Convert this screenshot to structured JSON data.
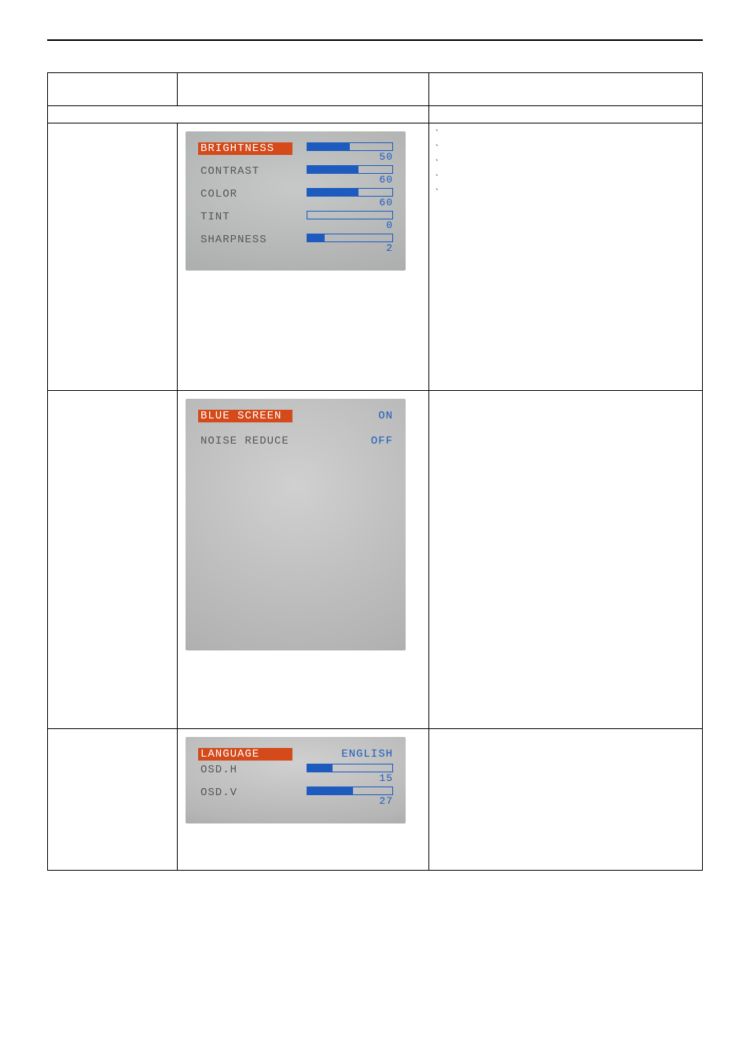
{
  "header": {
    "col1": "",
    "col2": "",
    "col3": ""
  },
  "section_header": {
    "left": "",
    "right": ""
  },
  "rows": [
    {
      "name_cell": "",
      "desc_items": [
        {
          "text": "`",
          "sub": ""
        },
        {
          "text": "",
          "sub": ""
        },
        {
          "text": "`",
          "sub": ""
        },
        {
          "text": "",
          "sub": ""
        },
        {
          "text": "",
          "sub": ""
        },
        {
          "text": "`",
          "sub": ""
        },
        {
          "text": "`",
          "sub": ""
        },
        {
          "text": "",
          "sub": ""
        },
        {
          "text": "`",
          "sub": ""
        }
      ],
      "photo": {
        "bg_gradient": "radial-gradient(ellipse 160% 120% at 50% 40%, #c7c9c9 0%, #a7a9a9 70%, #8f9191 100%)",
        "rows": [
          {
            "label": "BRIGHTNESS",
            "highlight": true,
            "type": "bar",
            "value": 50,
            "max": 100
          },
          {
            "label": "CONTRAST",
            "highlight": false,
            "type": "bar",
            "value": 60,
            "max": 100
          },
          {
            "label": "COLOR",
            "highlight": false,
            "type": "bar",
            "value": 60,
            "max": 100
          },
          {
            "label": "TINT",
            "highlight": false,
            "type": "bar",
            "value": 0,
            "max": 100
          },
          {
            "label": "SHARPNESS",
            "highlight": false,
            "type": "bar",
            "value": 2,
            "max": 10,
            "display": "2"
          }
        ],
        "height_class": "short",
        "bar_border": "#1e5bbf",
        "bar_fill": "#1e5bbf",
        "highlight_bg": "#d44a1a",
        "highlight_fg": "#ffffff",
        "label_color": "#555555",
        "value_color": "#1e5bbf",
        "font_family": "Courier New",
        "label_fontsize": 14,
        "value_fontsize": 13
      }
    },
    {
      "name_cell": "",
      "desc_items": [],
      "photo": {
        "bg_gradient": "radial-gradient(ellipse 160% 130% at 50% 35%, #cfd0cf 0%, #b1b2b1 55%, #8c8e8d 100%)",
        "rows": [
          {
            "label": "BLUE SCREEN",
            "highlight": true,
            "type": "text",
            "value_text": "ON"
          },
          {
            "label": "NOISE REDUCE",
            "highlight": false,
            "type": "text",
            "value_text": "OFF"
          }
        ],
        "height_class": "tall",
        "highlight_bg": "#d44a1a",
        "highlight_fg": "#ffffff",
        "label_color": "#555555",
        "value_color": "#1e5bbf",
        "font_family": "Courier New",
        "label_fontsize": 14,
        "row_gap": 16
      }
    },
    {
      "name_cell": "",
      "desc_items": [],
      "photo": {
        "bg_gradient": "radial-gradient(ellipse 160% 140% at 50% 30%, #cfd0cf 0%, #b4b5b4 50%, #888a89 100%)",
        "rows": [
          {
            "label": "LANGUAGE",
            "highlight": true,
            "type": "text",
            "value_text": "ENGLISH"
          },
          {
            "label": "OSD.H",
            "highlight": false,
            "type": "bar",
            "value": 15,
            "max": 50,
            "display": "15"
          },
          {
            "label": "OSD.V",
            "highlight": false,
            "type": "bar",
            "value": 27,
            "max": 50,
            "display": "27"
          }
        ],
        "height_class": "short",
        "bar_border": "#1e5bbf",
        "bar_fill": "#1e5bbf",
        "highlight_bg": "#d44a1a",
        "highlight_fg": "#ffffff",
        "label_color": "#555555",
        "value_color": "#1e5bbf",
        "font_family": "Courier New",
        "label_fontsize": 14,
        "value_fontsize": 13
      }
    }
  ]
}
